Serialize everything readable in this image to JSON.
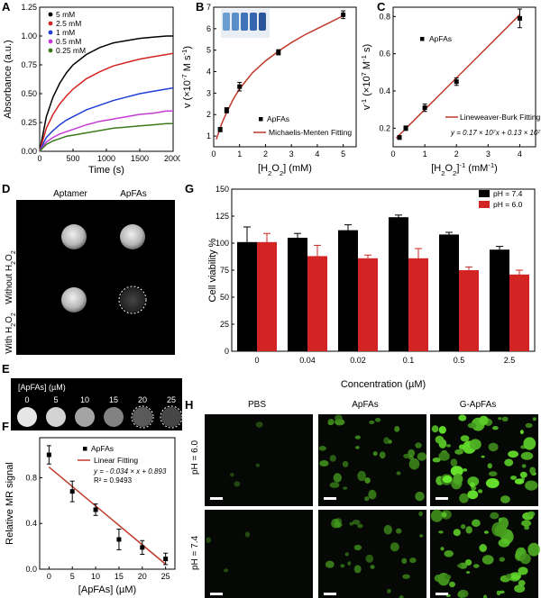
{
  "figure": {
    "panel_letters": [
      "A",
      "B",
      "C",
      "D",
      "E",
      "F",
      "G",
      "H"
    ],
    "colors": {
      "black": "#000000",
      "red": "#d32424",
      "blue": "#1f3fd6",
      "magenta": "#c43bd6",
      "green": "#3c7a1e",
      "fit_red": "#c0392b"
    }
  },
  "chart_data": [
    {
      "id": "A",
      "type": "line",
      "xlabel": "Time (s)",
      "ylabel": "Absorbance (a.u.)",
      "xlim": [
        0,
        2000
      ],
      "ylim": [
        0,
        1.25
      ],
      "xticks": [
        0,
        500,
        1000,
        1500,
        2000
      ],
      "yticks": [
        0,
        0.25,
        0.5,
        0.75,
        1.0,
        1.25
      ],
      "ytick_labels": [
        "0.00",
        "0.25",
        "0.50",
        "0.75",
        "1.00",
        "1.25"
      ],
      "legend_position": "top-left",
      "series": [
        {
          "name": "5 mM",
          "color": "#000000",
          "x": [
            0,
            100,
            200,
            300,
            400,
            500,
            700,
            900,
            1100,
            1300,
            1500,
            1700,
            1900,
            2000
          ],
          "values": [
            0.0,
            0.3,
            0.47,
            0.59,
            0.68,
            0.75,
            0.84,
            0.9,
            0.94,
            0.96,
            0.98,
            0.99,
            1.0,
            1.0
          ]
        },
        {
          "name": "2.5 mM",
          "color": "#d32424",
          "x": [
            0,
            100,
            200,
            300,
            400,
            500,
            700,
            900,
            1100,
            1300,
            1500,
            1700,
            1900,
            2000
          ],
          "values": [
            0.0,
            0.2,
            0.32,
            0.41,
            0.48,
            0.54,
            0.63,
            0.69,
            0.74,
            0.77,
            0.8,
            0.82,
            0.84,
            0.85
          ]
        },
        {
          "name": "1 mM",
          "color": "#1f3fd6",
          "x": [
            0,
            100,
            200,
            300,
            400,
            500,
            700,
            900,
            1100,
            1300,
            1500,
            1700,
            1900,
            2000
          ],
          "values": [
            0.0,
            0.12,
            0.18,
            0.23,
            0.27,
            0.3,
            0.36,
            0.4,
            0.44,
            0.47,
            0.5,
            0.52,
            0.54,
            0.55
          ]
        },
        {
          "name": "0.5 mM",
          "color": "#c43bd6",
          "x": [
            0,
            100,
            200,
            300,
            400,
            500,
            700,
            900,
            1100,
            1300,
            1500,
            1700,
            1900,
            2000
          ],
          "values": [
            0.0,
            0.08,
            0.12,
            0.15,
            0.17,
            0.19,
            0.23,
            0.26,
            0.28,
            0.3,
            0.32,
            0.33,
            0.35,
            0.35
          ]
        },
        {
          "name": "0.25 mM",
          "color": "#3c7a1e",
          "x": [
            0,
            100,
            200,
            300,
            400,
            500,
            700,
            900,
            1100,
            1300,
            1500,
            1700,
            1900,
            2000
          ],
          "values": [
            0.0,
            0.06,
            0.09,
            0.11,
            0.13,
            0.14,
            0.16,
            0.18,
            0.2,
            0.21,
            0.22,
            0.23,
            0.24,
            0.24
          ]
        }
      ]
    },
    {
      "id": "B",
      "type": "scatter",
      "xlabel": "[H2O2] (mM)",
      "ylabel": "v (×10^-7 M s^-1)",
      "xlim": [
        0,
        5.5
      ],
      "ylim": [
        0.5,
        7
      ],
      "xticks": [
        0,
        1,
        2,
        3,
        4,
        5
      ],
      "yticks": [
        1,
        2,
        3,
        4,
        5,
        6,
        7
      ],
      "legend_position": "bottom-right",
      "points": {
        "name": "ApFAs",
        "x": [
          0.25,
          0.5,
          1,
          2.5,
          5
        ],
        "values": [
          1.3,
          2.2,
          3.3,
          4.9,
          6.65
        ],
        "err": [
          0.1,
          0.12,
          0.2,
          0.12,
          0.18
        ]
      },
      "fit": {
        "name": "Michaelis-Menten Fitting",
        "x": [
          0.1,
          0.3,
          0.5,
          0.75,
          1,
          1.5,
          2,
          2.5,
          3,
          3.5,
          4,
          4.5,
          5
        ],
        "values": [
          0.85,
          1.55,
          2.1,
          2.7,
          3.2,
          3.95,
          4.5,
          4.95,
          5.35,
          5.7,
          6.0,
          6.3,
          6.6
        ]
      }
    },
    {
      "id": "C",
      "type": "scatter",
      "xlabel": "[H2O2]^-1 (mM^-1)",
      "ylabel": "v^-1 (×10^7 M^-1 s)",
      "xlim": [
        0,
        4.5
      ],
      "ylim": [
        0.1,
        0.85
      ],
      "xticks": [
        0,
        1,
        2,
        3,
        4
      ],
      "yticks": [
        0.2,
        0.4,
        0.6,
        0.8
      ],
      "legend_position": "top-left",
      "points": {
        "name": "ApFAs",
        "x": [
          0.2,
          0.4,
          1,
          2,
          4
        ],
        "values": [
          0.15,
          0.2,
          0.31,
          0.45,
          0.79
        ],
        "err": [
          0.01,
          0.012,
          0.02,
          0.02,
          0.05
        ]
      },
      "fit": {
        "name": "Lineweaver-Burk Fitting",
        "x": [
          0.1,
          4.0
        ],
        "values": [
          0.147,
          0.81
        ]
      },
      "equation": "y = 0.17 × 10⁷x + 0.13 × 10⁷"
    },
    {
      "id": "F",
      "type": "scatter",
      "xlabel": "[ApFAs] (µM)",
      "ylabel": "Relative MR signal",
      "xlim": [
        -2,
        27
      ],
      "ylim": [
        0,
        1.15
      ],
      "xticks": [
        0,
        5,
        10,
        15,
        20,
        25
      ],
      "yticks": [
        0.0,
        0.4,
        0.8
      ],
      "ytick_labels": [
        "0.0",
        "0.4",
        "0.8"
      ],
      "legend_position": "top-right",
      "points": {
        "name": "ApFAs",
        "x": [
          0,
          5,
          10,
          15,
          20,
          25
        ],
        "values": [
          1.0,
          0.68,
          0.52,
          0.26,
          0.19,
          0.09
        ],
        "err": [
          0.08,
          0.09,
          0.05,
          0.09,
          0.06,
          0.05
        ]
      },
      "fit": {
        "name": "Linear Fitting",
        "x": [
          0,
          25
        ],
        "values": [
          0.893,
          0.043
        ]
      },
      "equation": "y = - 0.034 × x + 0.893",
      "r2": "R² = 0.9493"
    },
    {
      "id": "G",
      "type": "bar",
      "xlabel": "Concentration (µM)",
      "ylabel": "Cell viability %",
      "categories": [
        "0",
        "0.04",
        "0.02",
        "0.1",
        "0.5",
        "2.5"
      ],
      "ylim": [
        0,
        150
      ],
      "yticks": [
        0,
        25,
        50,
        75,
        100,
        125,
        150
      ],
      "legend_position": "top-right",
      "series": [
        {
          "name": "pH = 7.4",
          "color": "#000000",
          "values": [
            101,
            105,
            112,
            124,
            108,
            94
          ],
          "err": [
            14,
            4,
            5,
            2,
            2,
            3
          ]
        },
        {
          "name": "pH = 6.0",
          "color": "#d32424",
          "values": [
            101,
            88,
            86,
            86,
            75,
            71
          ],
          "err": [
            8,
            10,
            3,
            9,
            3,
            4
          ]
        }
      ]
    }
  ],
  "panel_D": {
    "column_labels": [
      "Aptamer",
      "ApFAs"
    ],
    "row_label_top": "Without H₂O₂",
    "row_label_bottom": "With H₂O₂"
  },
  "panel_E": {
    "title": "[ApFAs] (µM)",
    "labels": [
      "0",
      "5",
      "10",
      "15",
      "20",
      "25"
    ],
    "brightness": [
      0.95,
      0.85,
      0.62,
      0.45,
      0.25,
      0.15
    ]
  },
  "panel_H": {
    "column_labels": [
      "PBS",
      "ApFAs",
      "G-ApFAs"
    ],
    "row_labels": [
      "pH = 6.0",
      "pH = 7.4"
    ],
    "intensity": [
      [
        0.05,
        0.45,
        0.9
      ],
      [
        0.04,
        0.35,
        0.75
      ]
    ]
  }
}
